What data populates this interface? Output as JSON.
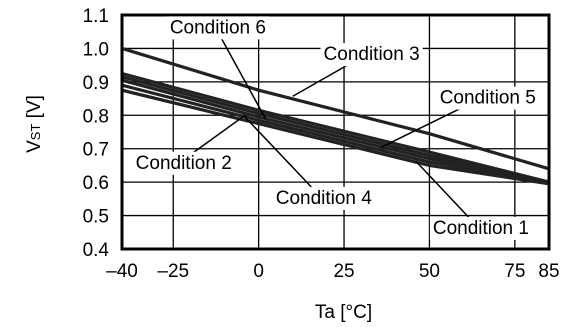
{
  "chart_data": {
    "type": "line",
    "title": "",
    "xlabel": "Ta [°C]",
    "ylabel_main": "V",
    "ylabel_sub": "ST",
    "ylabel_unit": " [V]",
    "xlim": [
      -40,
      85
    ],
    "ylim": [
      0.4,
      1.1
    ],
    "x_ticks": [
      {
        "value": -40,
        "label": "–40"
      },
      {
        "value": -25,
        "label": "–25"
      },
      {
        "value": 0,
        "label": "0"
      },
      {
        "value": 25,
        "label": "25"
      },
      {
        "value": 50,
        "label": "50"
      },
      {
        "value": 75,
        "label": "75"
      },
      {
        "value": 85,
        "label": "85"
      }
    ],
    "y_ticks": [
      {
        "value": 0.4,
        "label": "0.4"
      },
      {
        "value": 0.5,
        "label": "0.5"
      },
      {
        "value": 0.6,
        "label": "0.6"
      },
      {
        "value": 0.7,
        "label": "0.7"
      },
      {
        "value": 0.8,
        "label": "0.8"
      },
      {
        "value": 0.9,
        "label": "0.9"
      },
      {
        "value": 1.0,
        "label": "1.0"
      },
      {
        "value": 1.1,
        "label": "1.1"
      }
    ],
    "grid_x": [
      -25,
      0,
      25,
      50,
      75
    ],
    "grid_y": [
      0.5,
      0.6,
      0.7,
      0.8,
      0.9,
      1.0
    ],
    "grid": true,
    "series": [
      {
        "name": "Condition 1",
        "x": [
          -40,
          0,
          50,
          85
        ],
        "y": [
          0.875,
          0.775,
          0.65,
          0.595
        ]
      },
      {
        "name": "Condition 2",
        "x": [
          -40,
          0,
          50,
          85
        ],
        "y": [
          0.89,
          0.785,
          0.66,
          0.6
        ]
      },
      {
        "name": "Condition 3",
        "x": [
          -40,
          0,
          50,
          85
        ],
        "y": [
          1.0,
          0.875,
          0.745,
          0.64
        ]
      },
      {
        "name": "Condition 4",
        "x": [
          -40,
          0,
          50,
          85
        ],
        "y": [
          0.905,
          0.795,
          0.67,
          0.6
        ]
      },
      {
        "name": "Condition 5",
        "x": [
          -40,
          0,
          50,
          85
        ],
        "y": [
          0.915,
          0.805,
          0.68,
          0.6
        ]
      },
      {
        "name": "Condition 6",
        "x": [
          -40,
          0,
          50,
          85
        ],
        "y": [
          0.925,
          0.815,
          0.69,
          0.6
        ]
      }
    ],
    "annotations": [
      {
        "text": "Condition 6",
        "x": -26,
        "y": 1.045,
        "target_x": 2,
        "target_y": 0.79
      },
      {
        "text": "Condition 3",
        "x": 19,
        "y": 0.965,
        "target_x": 10,
        "target_y": 0.857
      },
      {
        "text": "Condition 5",
        "x": 53,
        "y": 0.835,
        "target_x": 36,
        "target_y": 0.705
      },
      {
        "text": "Condition 2",
        "x": -36,
        "y": 0.64,
        "target_x": -4,
        "target_y": 0.8
      },
      {
        "text": "Condition 4",
        "x": 5,
        "y": 0.535,
        "target_x": -4,
        "target_y": 0.795
      },
      {
        "text": "Condition 1",
        "x": 51,
        "y": 0.445,
        "target_x": 46,
        "target_y": 0.663
      }
    ]
  }
}
